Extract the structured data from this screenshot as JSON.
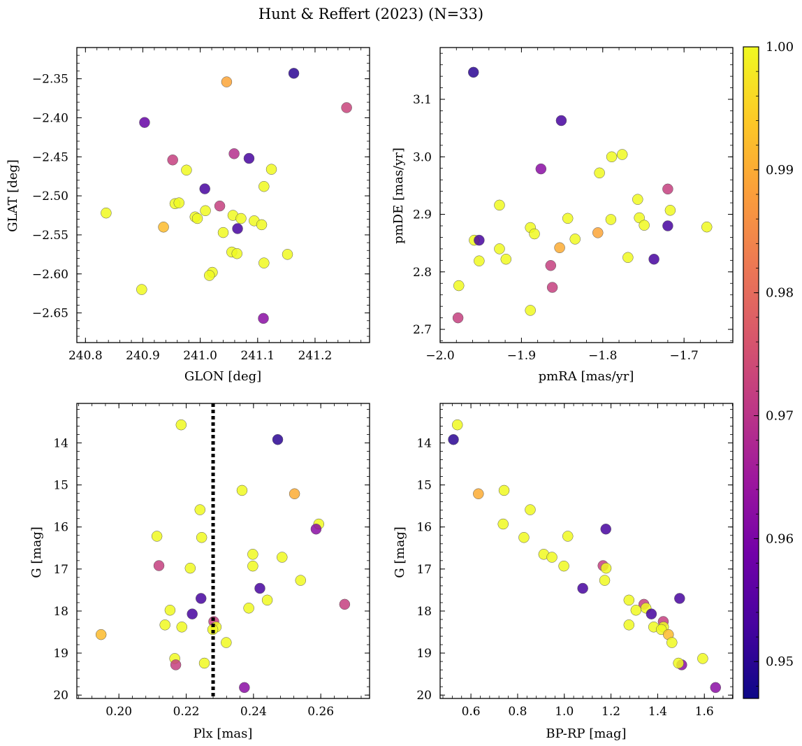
{
  "title": "Hunt & Reffert (2023) (N=33)",
  "colors": {
    "marker_edge": "#555555",
    "dotted_line": "#000000",
    "colormap": [
      "#0d0887",
      "#46039f",
      "#7201a8",
      "#9c179e",
      "#bd3786",
      "#d8576b",
      "#ed7953",
      "#fb9f3a",
      "#fdca26",
      "#f0f921"
    ]
  },
  "colorbar": {
    "min": 0.947,
    "max": 1.0,
    "ticks": [
      0.95,
      0.96,
      0.97,
      0.98,
      0.99,
      1.0
    ],
    "tick_labels": [
      "0.95",
      "0.96",
      "0.97",
      "0.98",
      "0.99",
      "1.00"
    ]
  },
  "chart_data": [
    {
      "type": "scatter",
      "xlabel": "GLON [deg]",
      "ylabel": "GLAT [deg]",
      "xlim": [
        240.785,
        241.295
      ],
      "ylim": [
        -2.688,
        -2.31
      ],
      "xticks": [
        240.8,
        240.9,
        241.0,
        241.1,
        241.2
      ],
      "xtick_labels": [
        "240.8",
        "240.9",
        "241.0",
        "241.1",
        "241.2"
      ],
      "yticks": [
        -2.35,
        -2.4,
        -2.45,
        -2.5,
        -2.55,
        -2.6,
        -2.65
      ],
      "ytick_labels": [
        "−2.35",
        "−2.40",
        "−2.45",
        "−2.50",
        "−2.55",
        "−2.60",
        "−2.65"
      ],
      "x": [
        241.163,
        240.903,
        241.046,
        241.255,
        240.952,
        241.059,
        241.085,
        241.124,
        240.976,
        241.008,
        241.111,
        240.836,
        240.956,
        240.963,
        241.034,
        241.009,
        240.991,
        240.995,
        241.057,
        241.071,
        241.094,
        240.936,
        241.065,
        241.04,
        241.107,
        241.055,
        241.064,
        241.152,
        241.111,
        241.021,
        241.016,
        240.898,
        241.11
      ],
      "y": [
        -2.343,
        -2.406,
        -2.354,
        -2.387,
        -2.454,
        -2.446,
        -2.452,
        -2.466,
        -2.467,
        -2.491,
        -2.488,
        -2.522,
        -2.51,
        -2.509,
        -2.513,
        -2.519,
        -2.527,
        -2.529,
        -2.525,
        -2.529,
        -2.532,
        -2.54,
        -2.542,
        -2.547,
        -2.537,
        -2.572,
        -2.574,
        -2.575,
        -2.586,
        -2.598,
        -2.602,
        -2.62,
        -2.657
      ],
      "c": [
        0.95,
        0.957,
        0.989,
        0.973,
        0.972,
        0.969,
        0.953,
        1.0,
        1.0,
        0.953,
        1.0,
        1.0,
        1.0,
        1.0,
        0.972,
        1.0,
        1.0,
        1.0,
        1.0,
        1.0,
        1.0,
        0.992,
        0.953,
        1.0,
        1.0,
        1.0,
        1.0,
        1.0,
        1.0,
        1.0,
        1.0,
        1.0,
        0.962
      ]
    },
    {
      "type": "scatter",
      "xlabel": "pmRA [mas/yr]",
      "ylabel": "pmDE [mas/yr]",
      "xlim": [
        -2.0,
        -1.64
      ],
      "ylim": [
        2.677,
        3.19
      ],
      "xticks": [
        -2.0,
        -1.9,
        -1.8,
        -1.7
      ],
      "xtick_labels": [
        "−2.0",
        "−1.9",
        "−1.8",
        "−1.7"
      ],
      "yticks": [
        2.7,
        2.8,
        2.9,
        3.0,
        3.1
      ],
      "ytick_labels": [
        "2.7",
        "2.8",
        "2.9",
        "3.0",
        "3.1"
      ],
      "x": [
        -1.959,
        -1.851,
        -1.876,
        -1.776,
        -1.789,
        -1.804,
        -1.927,
        -1.757,
        -1.72,
        -1.755,
        -1.843,
        -1.79,
        -1.749,
        -1.717,
        -1.889,
        -1.806,
        -1.884,
        -1.834,
        -1.958,
        -1.952,
        -1.927,
        -1.919,
        -1.952,
        -1.853,
        -1.769,
        -1.737,
        -1.864,
        -1.862,
        -1.977,
        -1.889,
        -1.978,
        -1.72,
        -1.672
      ],
      "y": [
        3.147,
        3.063,
        2.979,
        3.004,
        3.0,
        2.972,
        2.916,
        2.926,
        2.944,
        2.894,
        2.893,
        2.891,
        2.881,
        2.907,
        2.877,
        2.868,
        2.866,
        2.857,
        2.855,
        2.855,
        2.84,
        2.822,
        2.819,
        2.842,
        2.825,
        2.822,
        2.811,
        2.773,
        2.776,
        2.733,
        2.72,
        2.88,
        2.878
      ],
      "c": [
        0.95,
        0.953,
        0.962,
        1.0,
        1.0,
        1.0,
        1.0,
        1.0,
        0.972,
        1.0,
        1.0,
        1.0,
        1.0,
        1.0,
        1.0,
        0.989,
        1.0,
        1.0,
        1.0,
        0.953,
        1.0,
        1.0,
        1.0,
        0.99,
        1.0,
        0.953,
        0.972,
        0.972,
        1.0,
        1.0,
        0.972,
        0.953,
        1.0
      ]
    },
    {
      "type": "scatter",
      "xlabel": "Plx [mas]",
      "ylabel": "G [mag]",
      "xlim": [
        0.1875,
        0.2745
      ],
      "ylim": [
        20.08,
        13.06
      ],
      "y_inverted": true,
      "xticks": [
        0.2,
        0.22,
        0.24,
        0.26
      ],
      "xtick_labels": [
        "0.20",
        "0.22",
        "0.24",
        "0.26"
      ],
      "yticks": [
        14,
        15,
        16,
        17,
        18,
        19,
        20
      ],
      "ytick_labels": [
        "14",
        "15",
        "16",
        "17",
        "18",
        "19",
        "20"
      ],
      "vline_x": 0.228,
      "x": [
        0.2185,
        0.2472,
        0.2366,
        0.2522,
        0.2241,
        0.2594,
        0.2586,
        0.2113,
        0.2246,
        0.2398,
        0.2485,
        0.2119,
        0.2212,
        0.2398,
        0.254,
        0.2419,
        0.2671,
        0.2244,
        0.2441,
        0.2386,
        0.2152,
        0.2218,
        0.2282,
        0.2137,
        0.2187,
        0.2289,
        0.2279,
        0.1947,
        0.2319,
        0.2166,
        0.2254,
        0.2169,
        0.2373
      ],
      "y": [
        13.57,
        13.92,
        15.13,
        15.21,
        15.59,
        15.93,
        16.05,
        16.22,
        16.25,
        16.65,
        16.72,
        16.92,
        16.98,
        16.93,
        17.27,
        17.46,
        17.84,
        17.7,
        17.74,
        17.93,
        17.98,
        18.07,
        18.25,
        18.33,
        18.38,
        18.38,
        18.44,
        18.56,
        18.75,
        19.13,
        19.24,
        19.28,
        19.82
      ],
      "c": [
        1.0,
        0.95,
        1.0,
        0.99,
        1.0,
        1.0,
        0.962,
        1.0,
        1.0,
        1.0,
        1.0,
        0.972,
        1.0,
        1.0,
        1.0,
        0.953,
        0.972,
        0.953,
        1.0,
        1.0,
        1.0,
        0.953,
        0.972,
        1.0,
        1.0,
        1.0,
        1.0,
        0.992,
        1.0,
        1.0,
        1.0,
        0.972,
        0.962
      ]
    },
    {
      "type": "scatter",
      "xlabel": "BP-RP [mag]",
      "ylabel": "G [mag]",
      "xlim": [
        0.468,
        1.722
      ],
      "ylim": [
        20.08,
        13.06
      ],
      "y_inverted": true,
      "xticks": [
        0.6,
        0.8,
        1.0,
        1.2,
        1.4,
        1.6
      ],
      "xtick_labels": [
        "0.6",
        "0.8",
        "1.0",
        "1.2",
        "1.4",
        "1.6"
      ],
      "yticks": [
        14,
        15,
        16,
        17,
        18,
        19,
        20
      ],
      "ytick_labels": [
        "14",
        "15",
        "16",
        "17",
        "18",
        "19",
        "20"
      ],
      "x": [
        0.542,
        0.525,
        0.742,
        0.632,
        0.854,
        0.738,
        1.178,
        0.827,
        1.015,
        0.912,
        0.947,
        1.166,
        0.998,
        1.179,
        1.173,
        1.079,
        1.341,
        1.494,
        1.277,
        1.35,
        1.307,
        1.373,
        1.424,
        1.277,
        1.383,
        1.425,
        1.416,
        1.446,
        1.461,
        1.593,
        1.503,
        1.489,
        1.648
      ],
      "y": [
        13.57,
        13.92,
        15.13,
        15.21,
        15.59,
        15.93,
        16.05,
        16.25,
        16.22,
        16.65,
        16.72,
        16.92,
        16.93,
        16.98,
        17.27,
        17.46,
        17.84,
        17.7,
        17.74,
        17.93,
        17.98,
        18.07,
        18.25,
        18.33,
        18.38,
        18.38,
        18.44,
        18.56,
        18.75,
        19.13,
        19.28,
        19.24,
        19.82
      ],
      "c": [
        1.0,
        0.95,
        1.0,
        0.99,
        1.0,
        1.0,
        0.953,
        1.0,
        1.0,
        1.0,
        1.0,
        0.972,
        1.0,
        1.0,
        1.0,
        0.953,
        0.972,
        0.953,
        1.0,
        1.0,
        1.0,
        0.953,
        0.972,
        1.0,
        1.0,
        1.0,
        1.0,
        0.992,
        1.0,
        1.0,
        0.962,
        1.0,
        0.962
      ]
    }
  ]
}
